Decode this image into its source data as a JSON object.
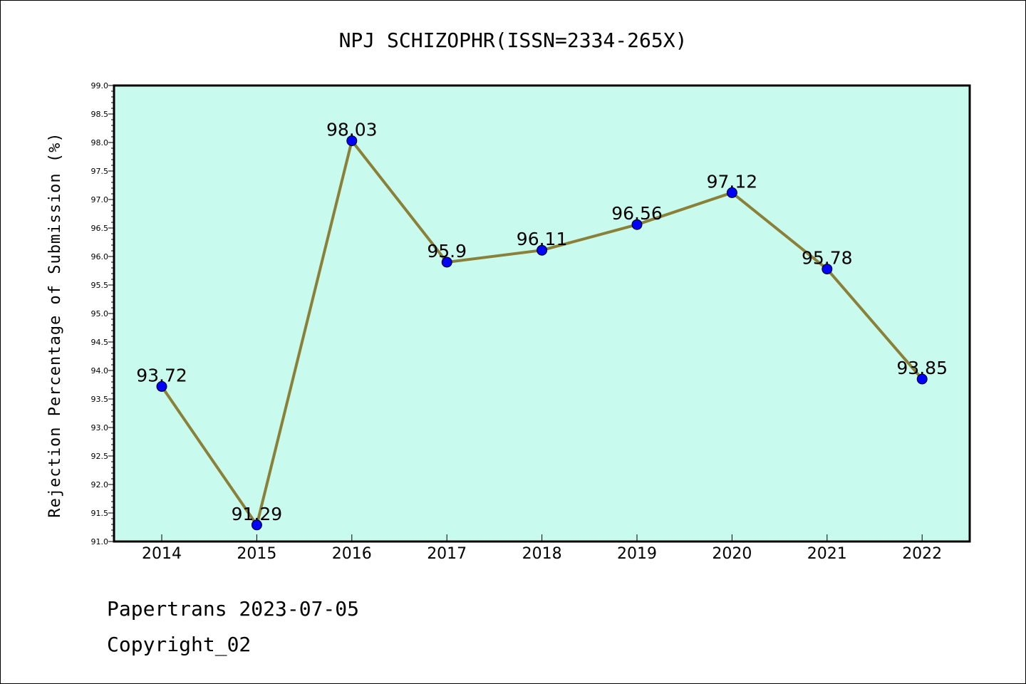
{
  "chart_data": {
    "type": "line",
    "title": "NPJ SCHIZOPHR(ISSN=2334-265X)",
    "xlabel": "",
    "ylabel": "Rejection Percentage of Submission (%)",
    "categories": [
      "2014",
      "2015",
      "2016",
      "2017",
      "2018",
      "2019",
      "2020",
      "2021",
      "2022"
    ],
    "values": [
      93.72,
      91.29,
      98.03,
      95.9,
      96.11,
      96.56,
      97.12,
      95.78,
      93.85
    ],
    "data_labels": [
      "93.72",
      "91.29",
      "98.03",
      "95.9",
      "96.11",
      "96.56",
      "97.12",
      "95.78",
      "93.85"
    ],
    "ylim": [
      91.0,
      99.0
    ],
    "yticks": [
      "91.0",
      "91.5",
      "92.0",
      "92.5",
      "93.0",
      "93.5",
      "94.0",
      "94.5",
      "95.0",
      "95.5",
      "96.0",
      "96.5",
      "97.0",
      "97.5",
      "98.0",
      "98.5",
      "99.0"
    ],
    "grid": false,
    "legend": "none",
    "colors": {
      "plot_background": "#c8fbee",
      "line": "#8b8038",
      "marker": "#0000ff",
      "frame": "#000000"
    }
  },
  "footer": {
    "line1": "Papertrans 2023-07-05",
    "line2": "Copyright_02"
  }
}
